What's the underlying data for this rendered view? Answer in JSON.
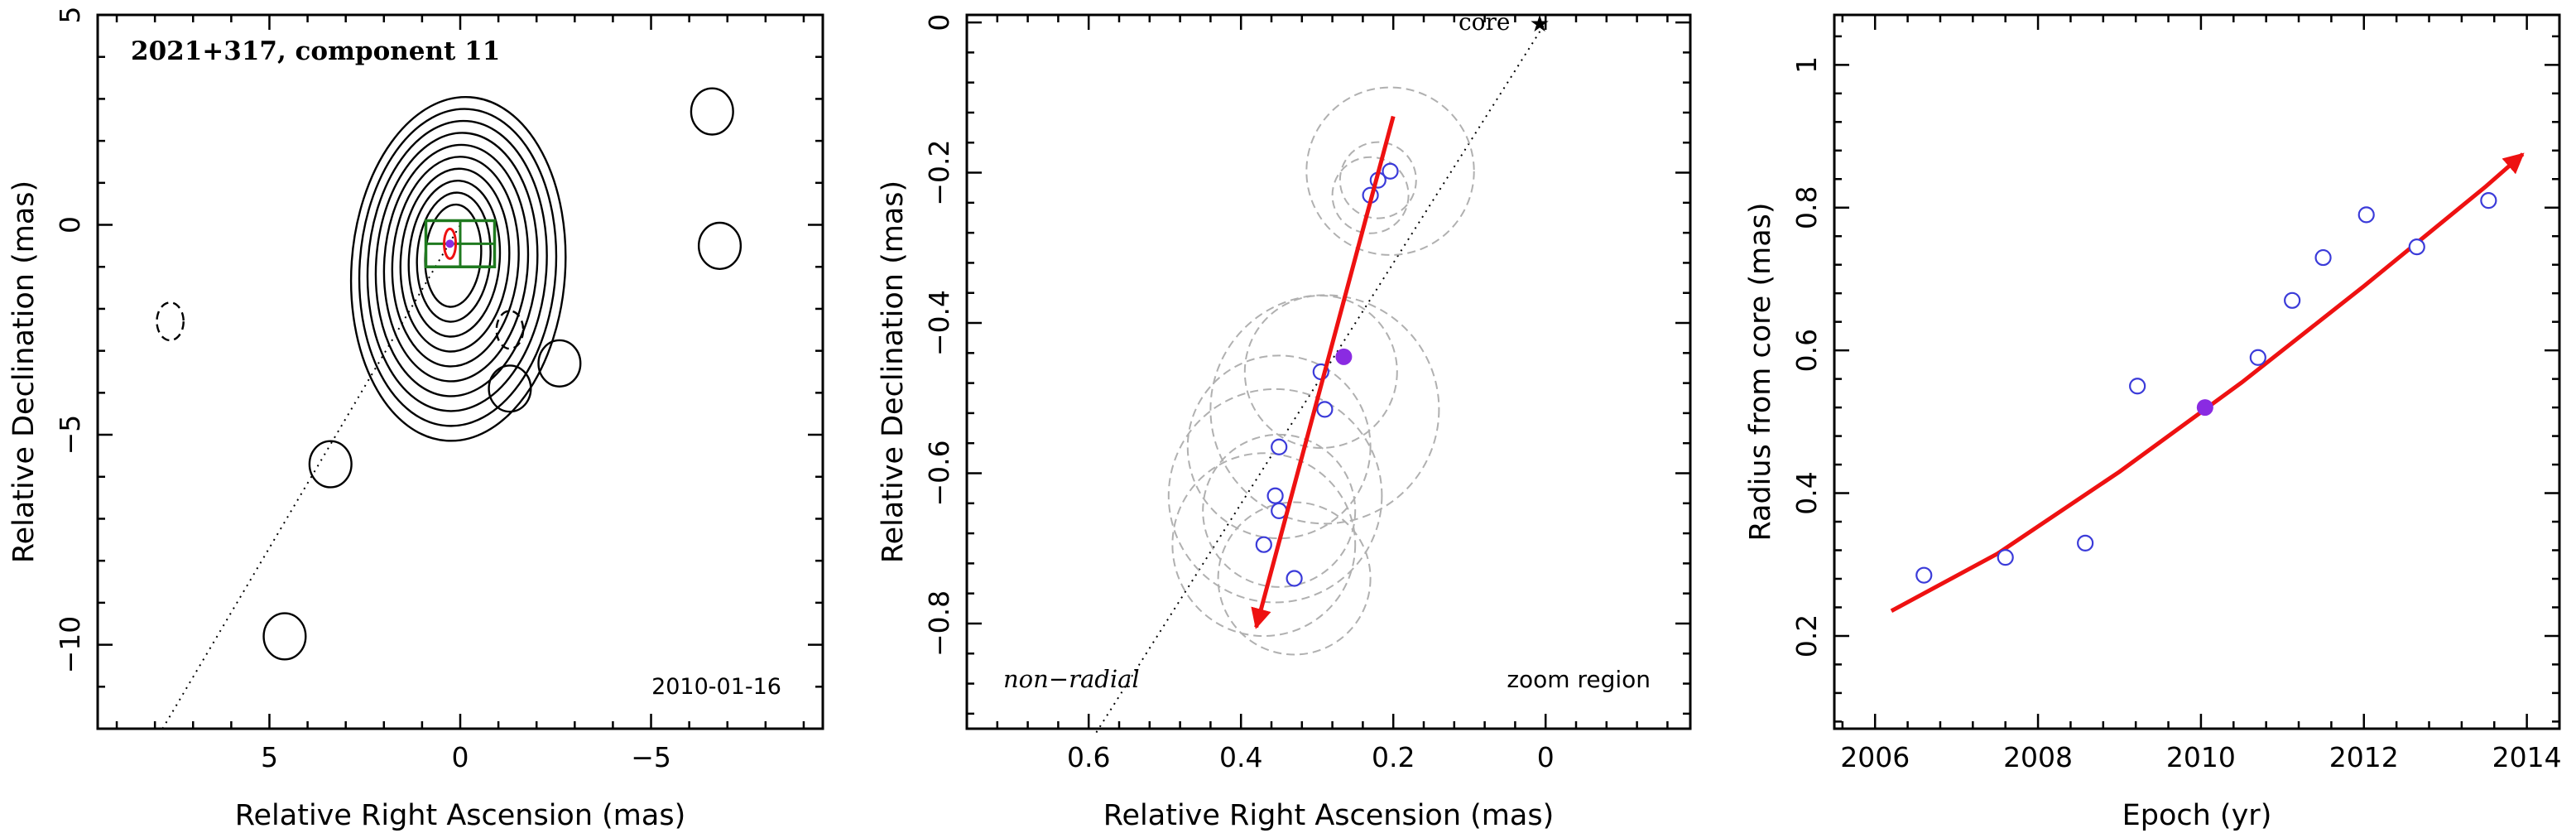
{
  "colors": {
    "arrow": "#ee1111",
    "points": "#3b3bd9",
    "highlight": "#8a2be2",
    "circles": "#b0b0b0",
    "box": "#1f7a1f",
    "contour": "#000000"
  },
  "chart_data": [
    {
      "type": "contour",
      "title": "2021+317, component 11",
      "date": "2010-01-16",
      "xlabel": "Relative Right Ascension (mas)",
      "ylabel": "Relative Declination (mas)",
      "xlim": [
        9.5,
        -9.5
      ],
      "ylim": [
        -12,
        5
      ],
      "xticks": [
        5,
        0,
        -5
      ],
      "yticks": [
        5,
        0,
        -5,
        -10
      ],
      "xtick_labels": [
        "5",
        "0",
        "−5"
      ],
      "ytick_labels": [
        "5",
        "0",
        "−5",
        "−10"
      ],
      "component_position": [
        0.27,
        -0.45
      ],
      "ridge_line": [
        [
          7.8,
          -12
        ],
        [
          0,
          0
        ]
      ],
      "contour_peak": [
        0.2,
        -0.7
      ],
      "contour_levels": 10,
      "isolated_contours": [
        {
          "x": 3.4,
          "y": -5.7,
          "style": "solid"
        },
        {
          "x": 4.6,
          "y": -9.8,
          "style": "solid"
        },
        {
          "x": -1.3,
          "y": -3.9,
          "style": "solid"
        },
        {
          "x": -2.6,
          "y": -3.3,
          "style": "solid"
        },
        {
          "x": -6.6,
          "y": 2.7,
          "style": "solid"
        },
        {
          "x": -6.8,
          "y": -0.5,
          "style": "solid"
        },
        {
          "x": 7.6,
          "y": -2.3,
          "style": "dashed"
        },
        {
          "x": -1.3,
          "y": -2.5,
          "style": "dashed"
        }
      ]
    },
    {
      "type": "scatter",
      "annotation_left": "non−radial",
      "annotation_right": "zoom region",
      "core_label": "core",
      "xlabel": "Relative Right Ascension (mas)",
      "ylabel": "Relative Declination (mas)",
      "xlim": [
        0.76,
        -0.19
      ],
      "ylim": [
        -0.94,
        0.01
      ],
      "xticks": [
        0.6,
        0.4,
        0.2,
        0
      ],
      "yticks": [
        0,
        -0.2,
        -0.4,
        -0.6,
        -0.8
      ],
      "xtick_labels": [
        "0.6",
        "0.4",
        "0.2",
        "0"
      ],
      "ytick_labels": [
        "0",
        "−0.2",
        "−0.4",
        "−0.6",
        "−0.8"
      ],
      "core": [
        0.0,
        0.0
      ],
      "points": [
        {
          "x": 0.204,
          "y": -0.198,
          "r": 0.11
        },
        {
          "x": 0.22,
          "y": -0.21,
          "r": 0.05
        },
        {
          "x": 0.23,
          "y": -0.23,
          "r": 0.05
        },
        {
          "x": 0.295,
          "y": -0.465,
          "r": 0.1
        },
        {
          "x": 0.29,
          "y": -0.515,
          "r": 0.15
        },
        {
          "x": 0.35,
          "y": -0.565,
          "r": 0.12
        },
        {
          "x": 0.355,
          "y": -0.63,
          "r": 0.14
        },
        {
          "x": 0.35,
          "y": -0.65,
          "r": 0.1
        },
        {
          "x": 0.37,
          "y": -0.695,
          "r": 0.12
        },
        {
          "x": 0.33,
          "y": -0.74,
          "r": 0.1
        }
      ],
      "highlight": {
        "x": 0.265,
        "y": -0.445
      },
      "arrow": {
        "from": [
          0.2,
          -0.125
        ],
        "to": [
          0.38,
          -0.805
        ]
      },
      "ridge_line": [
        [
          0.59,
          -0.945
        ],
        [
          0.0,
          0.0
        ]
      ]
    },
    {
      "type": "scatter",
      "xlabel": "Epoch (yr)",
      "ylabel": "Radius from core (mas)",
      "xlim": [
        2005.5,
        2014.4
      ],
      "ylim": [
        0.07,
        1.07
      ],
      "xticks": [
        2006,
        2008,
        2010,
        2012,
        2014
      ],
      "yticks": [
        0.2,
        0.4,
        0.6,
        0.8,
        1
      ],
      "xtick_labels": [
        "2006",
        "2008",
        "2010",
        "2012",
        "2014"
      ],
      "ytick_labels": [
        "0.2",
        "0.4",
        "0.6",
        "0.8",
        "1"
      ],
      "points": [
        {
          "x": 2006.6,
          "y": 0.285
        },
        {
          "x": 2007.6,
          "y": 0.31
        },
        {
          "x": 2008.58,
          "y": 0.33
        },
        {
          "x": 2009.22,
          "y": 0.55
        },
        {
          "x": 2010.7,
          "y": 0.59
        },
        {
          "x": 2011.12,
          "y": 0.67
        },
        {
          "x": 2011.5,
          "y": 0.73
        },
        {
          "x": 2012.03,
          "y": 0.79
        },
        {
          "x": 2012.65,
          "y": 0.745
        },
        {
          "x": 2013.53,
          "y": 0.81
        }
      ],
      "highlight": {
        "x": 2010.05,
        "y": 0.52
      },
      "fit_curve": {
        "x": [
          2006.2,
          2007.5,
          2009.0,
          2010.5,
          2012.0,
          2013.5,
          2013.95
        ],
        "y": [
          0.235,
          0.315,
          0.43,
          0.555,
          0.69,
          0.83,
          0.875
        ]
      }
    }
  ]
}
